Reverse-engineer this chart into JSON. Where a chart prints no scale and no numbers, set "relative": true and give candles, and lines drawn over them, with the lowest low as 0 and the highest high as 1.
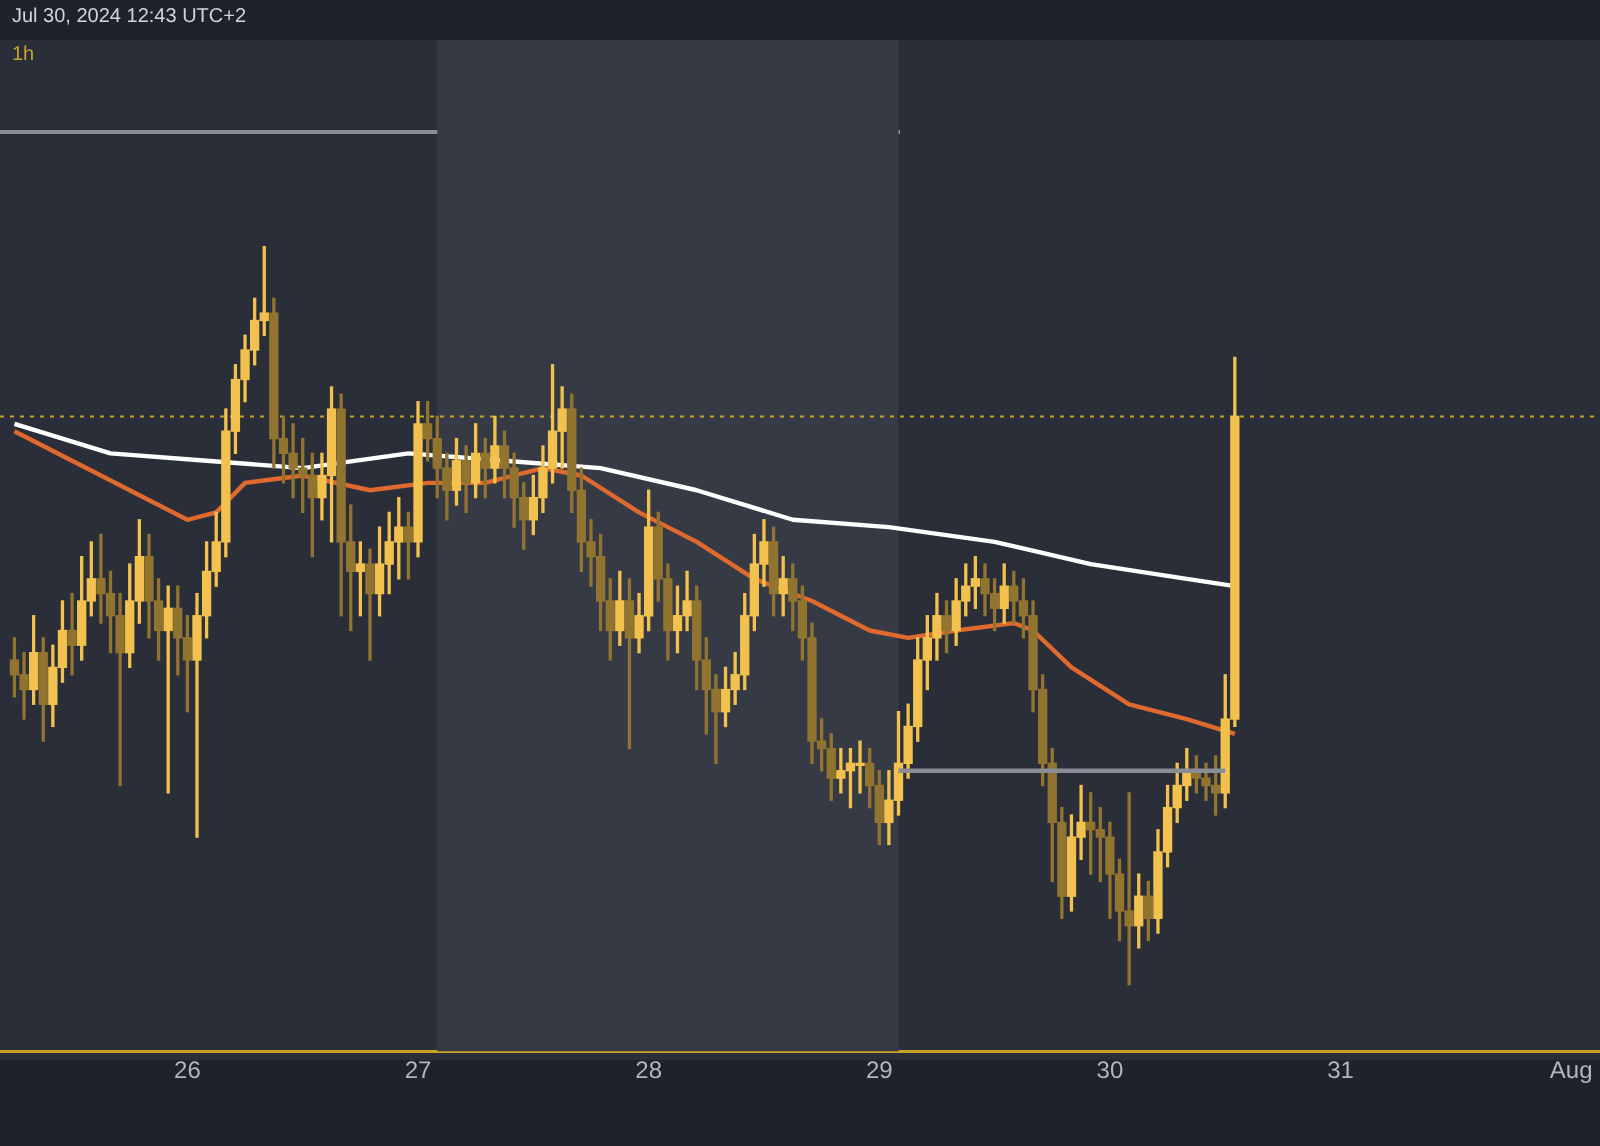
{
  "chart_data": {
    "type": "candlestick",
    "relative": true,
    "tick_labels": "x",
    "annotations": [
      "Jul 30, 2024 12:43 UTC+2",
      "1h"
    ],
    "xlim": [
      "2024-07-25T04:30",
      "2024-08-01T03:00"
    ],
    "xticks": [
      {
        "value": "2024-07-26",
        "label": "26"
      },
      {
        "value": "2024-07-27",
        "label": "27"
      },
      {
        "value": "2024-07-28",
        "label": "28"
      },
      {
        "value": "2024-07-29",
        "label": "29"
      },
      {
        "value": "2024-07-30",
        "label": "30"
      },
      {
        "value": "2024-07-31",
        "label": "31"
      },
      {
        "value": "2024-08-01",
        "label": "Aug"
      }
    ],
    "bands": [
      {
        "axis": "x",
        "from": "2024-07-27T02:00",
        "to": "2024-07-29T02:00",
        "color": "#363a45"
      }
    ],
    "ref_lines": [
      {
        "axis": "y",
        "value": 0.77,
        "color": "#c9a227",
        "line_style": "dotted"
      }
    ],
    "series": [
      {
        "type": "line",
        "color": "#ffffff",
        "x": [
          "2024-07-25T06:00",
          "2024-07-25T16:00",
          "2024-07-26T02:00",
          "2024-07-26T12:00",
          "2024-07-26T23:00",
          "2024-07-27T09:00",
          "2024-07-27T19:00",
          "2024-07-28T05:00",
          "2024-07-28T15:00",
          "2024-07-29T01:00",
          "2024-07-29T12:00",
          "2024-07-29T22:00",
          "2024-07-30T08:00",
          "2024-07-30T13:00"
        ],
        "values": [
          0.76,
          0.72,
          0.71,
          0.7,
          0.72,
          0.71,
          0.7,
          0.67,
          0.63,
          0.62,
          0.6,
          0.57,
          0.55,
          0.54
        ]
      },
      {
        "type": "line",
        "color": "#e0692e",
        "x": [
          "2024-07-25T06:00",
          "2024-07-25T12:00",
          "2024-07-25T18:00",
          "2024-07-26T00:00",
          "2024-07-26T03:00",
          "2024-07-26T06:00",
          "2024-07-26T12:00",
          "2024-07-26T19:00",
          "2024-07-27T01:00",
          "2024-07-27T07:00",
          "2024-07-27T13:00",
          "2024-07-27T17:00",
          "2024-07-27T23:00",
          "2024-07-28T05:00",
          "2024-07-28T11:00",
          "2024-07-28T17:00",
          "2024-07-28T23:00",
          "2024-07-29T03:00",
          "2024-07-29T08:00",
          "2024-07-29T14:00",
          "2024-07-29T16:00",
          "2024-07-29T20:00",
          "2024-07-30T02:00",
          "2024-07-30T08:00",
          "2024-07-30T13:00"
        ],
        "values": [
          0.75,
          0.71,
          0.67,
          0.63,
          0.64,
          0.68,
          0.69,
          0.67,
          0.68,
          0.68,
          0.7,
          0.69,
          0.64,
          0.6,
          0.55,
          0.52,
          0.48,
          0.47,
          0.48,
          0.49,
          0.48,
          0.43,
          0.38,
          0.36,
          0.34
        ]
      },
      {
        "type": "line",
        "color": "#8a8d96",
        "x": [
          "2024-07-29T02:00",
          "2024-07-30T12:00"
        ],
        "values": [
          0.29,
          0.29
        ]
      },
      {
        "type": "candlestick",
        "colors": [
          "#91742f",
          "#91742f",
          "#f2c14e",
          "#91742f",
          "#f2c14e",
          "#f2c14e",
          "#91742f",
          "#f2c14e",
          "#f2c14e",
          "#91742f",
          "#91742f",
          "#91742f",
          "#f2c14e",
          "#f2c14e",
          "#91742f",
          "#91742f",
          "#f2c14e",
          "#91742f",
          "#91742f",
          "#f2c14e",
          "#f2c14e",
          "#f2c14e",
          "#f2c14e",
          "#f2c14e",
          "#f2c14e",
          "#f2c14e",
          "#f2c14e",
          "#91742f",
          "#91742f",
          "#91742f",
          "#91742f",
          "#91742f",
          "#f2c14e",
          "#f2c14e",
          "#91742f",
          "#91742f",
          "#f2c14e",
          "#91742f",
          "#f2c14e",
          "#f2c14e",
          "#f2c14e",
          "#91742f",
          "#f2c14e",
          "#91742f",
          "#91742f",
          "#91742f",
          "#f2c14e",
          "#91742f",
          "#f2c14e",
          "#91742f",
          "#f2c14e",
          "#91742f",
          "#91742f",
          "#91742f",
          "#f2c14e",
          "#f2c14e",
          "#f2c14e",
          "#f2c14e",
          "#91742f",
          "#91742f",
          "#91742f",
          "#91742f",
          "#91742f",
          "#f2c14e",
          "#91742f",
          "#f2c14e",
          "#f2c14e",
          "#91742f",
          "#91742f",
          "#f2c14e",
          "#f2c14e",
          "#91742f",
          "#91742f",
          "#91742f",
          "#f2c14e",
          "#f2c14e",
          "#f2c14e",
          "#f2c14e",
          "#f2c14e",
          "#91742f",
          "#f2c14e",
          "#91742f",
          "#91742f",
          "#91742f",
          "#91742f",
          "#91742f",
          "#f2c14e",
          "#f2c14e",
          "#f2c14e",
          "#91742f",
          "#91742f",
          "#f2c14e",
          "#f2c14e",
          "#f2c14e",
          "#f2c14e",
          "#f2c14e",
          "#f2c14e",
          "#91742f",
          "#f2c14e",
          "#f2c14e",
          "#f2c14e",
          "#91742f",
          "#91742f",
          "#f2c14e",
          "#91742f",
          "#91742f",
          "#91742f",
          "#91742f",
          "#91742f",
          "#91742f",
          "#f2c14e",
          "#f2c14e",
          "#91742f",
          "#91742f",
          "#91742f",
          "#91742f",
          "#91742f",
          "#f2c14e",
          "#91742f",
          "#f2c14e",
          "#f2c14e",
          "#f2c14e",
          "#f2c14e",
          "#91742f",
          "#91742f",
          "#91742f",
          "#f2c14e",
          "#f2c14e"
        ],
        "x": [
          "2024-07-25T06:00",
          "2024-07-25T07:00",
          "2024-07-25T08:00",
          "2024-07-25T09:00",
          "2024-07-25T10:00",
          "2024-07-25T11:00",
          "2024-07-25T12:00",
          "2024-07-25T13:00",
          "2024-07-25T14:00",
          "2024-07-25T15:00",
          "2024-07-25T16:00",
          "2024-07-25T17:00",
          "2024-07-25T18:00",
          "2024-07-25T19:00",
          "2024-07-25T20:00",
          "2024-07-25T21:00",
          "2024-07-25T22:00",
          "2024-07-25T23:00",
          "2024-07-26T00:00",
          "2024-07-26T01:00",
          "2024-07-26T02:00",
          "2024-07-26T03:00",
          "2024-07-26T04:00",
          "2024-07-26T05:00",
          "2024-07-26T06:00",
          "2024-07-26T07:00",
          "2024-07-26T08:00",
          "2024-07-26T09:00",
          "2024-07-26T10:00",
          "2024-07-26T11:00",
          "2024-07-26T12:00",
          "2024-07-26T13:00",
          "2024-07-26T14:00",
          "2024-07-26T15:00",
          "2024-07-26T16:00",
          "2024-07-26T17:00",
          "2024-07-26T18:00",
          "2024-07-26T19:00",
          "2024-07-26T20:00",
          "2024-07-26T21:00",
          "2024-07-26T22:00",
          "2024-07-26T23:00",
          "2024-07-27T00:00",
          "2024-07-27T01:00",
          "2024-07-27T02:00",
          "2024-07-27T03:00",
          "2024-07-27T04:00",
          "2024-07-27T05:00",
          "2024-07-27T06:00",
          "2024-07-27T07:00",
          "2024-07-27T08:00",
          "2024-07-27T09:00",
          "2024-07-27T10:00",
          "2024-07-27T11:00",
          "2024-07-27T12:00",
          "2024-07-27T13:00",
          "2024-07-27T14:00",
          "2024-07-27T15:00",
          "2024-07-27T16:00",
          "2024-07-27T17:00",
          "2024-07-27T18:00",
          "2024-07-27T19:00",
          "2024-07-27T20:00",
          "2024-07-27T21:00",
          "2024-07-27T22:00",
          "2024-07-27T23:00",
          "2024-07-28T00:00",
          "2024-07-28T01:00",
          "2024-07-28T02:00",
          "2024-07-28T03:00",
          "2024-07-28T04:00",
          "2024-07-28T05:00",
          "2024-07-28T06:00",
          "2024-07-28T07:00",
          "2024-07-28T08:00",
          "2024-07-28T09:00",
          "2024-07-28T10:00",
          "2024-07-28T11:00",
          "2024-07-28T12:00",
          "2024-07-28T13:00",
          "2024-07-28T14:00",
          "2024-07-28T15:00",
          "2024-07-28T16:00",
          "2024-07-28T17:00",
          "2024-07-28T18:00",
          "2024-07-28T19:00",
          "2024-07-28T20:00",
          "2024-07-28T21:00",
          "2024-07-28T22:00",
          "2024-07-28T23:00",
          "2024-07-29T00:00",
          "2024-07-29T01:00",
          "2024-07-29T02:00",
          "2024-07-29T03:00",
          "2024-07-29T04:00",
          "2024-07-29T05:00",
          "2024-07-29T06:00",
          "2024-07-29T07:00",
          "2024-07-29T08:00",
          "2024-07-29T09:00",
          "2024-07-29T10:00",
          "2024-07-29T11:00",
          "2024-07-29T12:00",
          "2024-07-29T13:00",
          "2024-07-29T14:00",
          "2024-07-29T15:00",
          "2024-07-29T16:00",
          "2024-07-29T17:00",
          "2024-07-29T18:00",
          "2024-07-29T19:00",
          "2024-07-29T20:00",
          "2024-07-29T21:00",
          "2024-07-29T22:00",
          "2024-07-29T23:00",
          "2024-07-30T00:00",
          "2024-07-30T01:00",
          "2024-07-30T02:00",
          "2024-07-30T03:00",
          "2024-07-30T04:00",
          "2024-07-30T05:00",
          "2024-07-30T06:00",
          "2024-07-30T07:00",
          "2024-07-30T08:00",
          "2024-07-30T09:00",
          "2024-07-30T10:00",
          "2024-07-30T11:00",
          "2024-07-30T12:00",
          "2024-07-30T13:00"
        ],
        "ohlc": [
          [
            0.44,
            0.47,
            0.39,
            0.42
          ],
          [
            0.42,
            0.45,
            0.36,
            0.4
          ],
          [
            0.4,
            0.5,
            0.38,
            0.45
          ],
          [
            0.45,
            0.47,
            0.33,
            0.38
          ],
          [
            0.38,
            0.46,
            0.35,
            0.43
          ],
          [
            0.43,
            0.52,
            0.41,
            0.48
          ],
          [
            0.48,
            0.53,
            0.42,
            0.46
          ],
          [
            0.46,
            0.58,
            0.44,
            0.52
          ],
          [
            0.52,
            0.6,
            0.5,
            0.55
          ],
          [
            0.55,
            0.61,
            0.49,
            0.53
          ],
          [
            0.53,
            0.56,
            0.45,
            0.5
          ],
          [
            0.5,
            0.53,
            0.27,
            0.45
          ],
          [
            0.45,
            0.57,
            0.43,
            0.52
          ],
          [
            0.52,
            0.63,
            0.49,
            0.58
          ],
          [
            0.58,
            0.61,
            0.47,
            0.52
          ],
          [
            0.52,
            0.55,
            0.44,
            0.48
          ],
          [
            0.48,
            0.54,
            0.26,
            0.51
          ],
          [
            0.51,
            0.54,
            0.42,
            0.47
          ],
          [
            0.47,
            0.5,
            0.37,
            0.44
          ],
          [
            0.44,
            0.53,
            0.2,
            0.5
          ],
          [
            0.5,
            0.6,
            0.47,
            0.56
          ],
          [
            0.56,
            0.64,
            0.54,
            0.6
          ],
          [
            0.6,
            0.78,
            0.58,
            0.75
          ],
          [
            0.75,
            0.84,
            0.72,
            0.82
          ],
          [
            0.82,
            0.88,
            0.79,
            0.86
          ],
          [
            0.86,
            0.93,
            0.84,
            0.9
          ],
          [
            0.9,
            1.0,
            0.88,
            0.91
          ],
          [
            0.91,
            0.93,
            0.7,
            0.74
          ],
          [
            0.74,
            0.77,
            0.68,
            0.72
          ],
          [
            0.72,
            0.76,
            0.66,
            0.7
          ],
          [
            0.7,
            0.74,
            0.64,
            0.69
          ],
          [
            0.69,
            0.72,
            0.58,
            0.66
          ],
          [
            0.66,
            0.72,
            0.63,
            0.69
          ],
          [
            0.69,
            0.81,
            0.6,
            0.78
          ],
          [
            0.78,
            0.8,
            0.5,
            0.6
          ],
          [
            0.6,
            0.65,
            0.48,
            0.56
          ],
          [
            0.56,
            0.6,
            0.5,
            0.57
          ],
          [
            0.57,
            0.59,
            0.44,
            0.53
          ],
          [
            0.53,
            0.62,
            0.5,
            0.57
          ],
          [
            0.57,
            0.64,
            0.53,
            0.6
          ],
          [
            0.6,
            0.66,
            0.55,
            0.62
          ],
          [
            0.62,
            0.64,
            0.55,
            0.6
          ],
          [
            0.6,
            0.79,
            0.58,
            0.76
          ],
          [
            0.76,
            0.79,
            0.71,
            0.74
          ],
          [
            0.74,
            0.77,
            0.66,
            0.7
          ],
          [
            0.7,
            0.72,
            0.63,
            0.67
          ],
          [
            0.67,
            0.74,
            0.65,
            0.71
          ],
          [
            0.71,
            0.73,
            0.64,
            0.68
          ],
          [
            0.68,
            0.76,
            0.66,
            0.72
          ],
          [
            0.72,
            0.74,
            0.66,
            0.7
          ],
          [
            0.7,
            0.77,
            0.68,
            0.73
          ],
          [
            0.73,
            0.75,
            0.66,
            0.7
          ],
          [
            0.7,
            0.72,
            0.62,
            0.66
          ],
          [
            0.66,
            0.68,
            0.59,
            0.63
          ],
          [
            0.63,
            0.69,
            0.61,
            0.66
          ],
          [
            0.66,
            0.73,
            0.64,
            0.7
          ],
          [
            0.7,
            0.84,
            0.68,
            0.75
          ],
          [
            0.75,
            0.81,
            0.7,
            0.78
          ],
          [
            0.78,
            0.8,
            0.64,
            0.67
          ],
          [
            0.67,
            0.7,
            0.56,
            0.6
          ],
          [
            0.6,
            0.63,
            0.54,
            0.58
          ],
          [
            0.58,
            0.61,
            0.48,
            0.52
          ],
          [
            0.52,
            0.55,
            0.44,
            0.48
          ],
          [
            0.48,
            0.56,
            0.46,
            0.52
          ],
          [
            0.52,
            0.55,
            0.32,
            0.47
          ],
          [
            0.47,
            0.53,
            0.45,
            0.5
          ],
          [
            0.5,
            0.67,
            0.48,
            0.62
          ],
          [
            0.62,
            0.64,
            0.52,
            0.55
          ],
          [
            0.55,
            0.57,
            0.44,
            0.48
          ],
          [
            0.48,
            0.54,
            0.45,
            0.5
          ],
          [
            0.5,
            0.56,
            0.48,
            0.52
          ],
          [
            0.52,
            0.54,
            0.4,
            0.44
          ],
          [
            0.44,
            0.47,
            0.34,
            0.4
          ],
          [
            0.4,
            0.42,
            0.3,
            0.37
          ],
          [
            0.37,
            0.43,
            0.35,
            0.4
          ],
          [
            0.4,
            0.45,
            0.38,
            0.42
          ],
          [
            0.42,
            0.53,
            0.4,
            0.5
          ],
          [
            0.5,
            0.61,
            0.48,
            0.57
          ],
          [
            0.57,
            0.63,
            0.54,
            0.6
          ],
          [
            0.6,
            0.62,
            0.5,
            0.53
          ],
          [
            0.53,
            0.58,
            0.5,
            0.55
          ],
          [
            0.55,
            0.57,
            0.48,
            0.52
          ],
          [
            0.52,
            0.54,
            0.44,
            0.47
          ],
          [
            0.47,
            0.49,
            0.3,
            0.33
          ],
          [
            0.33,
            0.36,
            0.29,
            0.32
          ],
          [
            0.32,
            0.34,
            0.25,
            0.28
          ],
          [
            0.28,
            0.32,
            0.26,
            0.29
          ],
          [
            0.29,
            0.32,
            0.24,
            0.3
          ],
          [
            0.3,
            0.33,
            0.26,
            0.3
          ],
          [
            0.3,
            0.32,
            0.24,
            0.27
          ],
          [
            0.27,
            0.29,
            0.19,
            0.22
          ],
          [
            0.22,
            0.29,
            0.19,
            0.25
          ],
          [
            0.25,
            0.37,
            0.23,
            0.3
          ],
          [
            0.3,
            0.38,
            0.28,
            0.35
          ],
          [
            0.35,
            0.47,
            0.33,
            0.44
          ],
          [
            0.44,
            0.5,
            0.4,
            0.47
          ],
          [
            0.47,
            0.53,
            0.44,
            0.5
          ],
          [
            0.5,
            0.52,
            0.45,
            0.48
          ],
          [
            0.48,
            0.55,
            0.46,
            0.52
          ],
          [
            0.52,
            0.57,
            0.5,
            0.54
          ],
          [
            0.54,
            0.58,
            0.51,
            0.55
          ],
          [
            0.55,
            0.57,
            0.5,
            0.53
          ],
          [
            0.53,
            0.55,
            0.48,
            0.51
          ],
          [
            0.51,
            0.57,
            0.49,
            0.54
          ],
          [
            0.54,
            0.56,
            0.49,
            0.52
          ],
          [
            0.52,
            0.55,
            0.47,
            0.5
          ],
          [
            0.5,
            0.52,
            0.37,
            0.4
          ],
          [
            0.4,
            0.42,
            0.27,
            0.3
          ],
          [
            0.3,
            0.32,
            0.14,
            0.22
          ],
          [
            0.22,
            0.24,
            0.09,
            0.12
          ],
          [
            0.12,
            0.23,
            0.1,
            0.2
          ],
          [
            0.2,
            0.27,
            0.17,
            0.22
          ],
          [
            0.22,
            0.26,
            0.15,
            0.21
          ],
          [
            0.21,
            0.24,
            0.14,
            0.2
          ],
          [
            0.2,
            0.22,
            0.09,
            0.15
          ],
          [
            0.15,
            0.17,
            0.06,
            0.1
          ],
          [
            0.1,
            0.26,
            0.0,
            0.08
          ],
          [
            0.08,
            0.15,
            0.05,
            0.12
          ],
          [
            0.12,
            0.14,
            0.06,
            0.09
          ],
          [
            0.09,
            0.21,
            0.07,
            0.18
          ],
          [
            0.18,
            0.27,
            0.16,
            0.24
          ],
          [
            0.24,
            0.3,
            0.22,
            0.27
          ],
          [
            0.27,
            0.32,
            0.25,
            0.29
          ],
          [
            0.29,
            0.31,
            0.26,
            0.28
          ],
          [
            0.28,
            0.3,
            0.25,
            0.27
          ],
          [
            0.27,
            0.31,
            0.23,
            0.26
          ],
          [
            0.26,
            0.42,
            0.24,
            0.36
          ],
          [
            0.36,
            0.85,
            0.35,
            0.77
          ]
        ]
      }
    ]
  }
}
